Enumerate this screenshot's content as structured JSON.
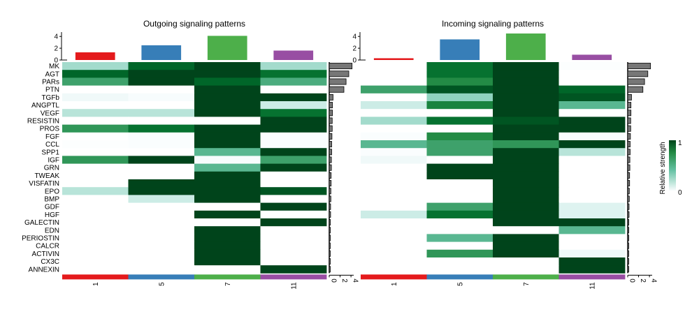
{
  "chart_data": {
    "type": "heatmap",
    "groups": [
      "1",
      "5",
      "7",
      "11"
    ],
    "group_colors": [
      "#e41a1c",
      "#377eb8",
      "#4daf4a",
      "#984ea3"
    ],
    "pathways": [
      "MK",
      "AGT",
      "PARs",
      "PTN",
      "TGFb",
      "ANGPTL",
      "VEGF",
      "RESISTIN",
      "PROS",
      "FGF",
      "CCL",
      "SPP1",
      "IGF",
      "GRN",
      "TWEAK",
      "VISFATIN",
      "EPO",
      "BMP",
      "GDF",
      "HGF",
      "GALECTIN",
      "EDN",
      "PERIOSTIN",
      "CALCR",
      "ACTIVIN",
      "CX3C",
      "ANNEXIN"
    ],
    "legend": {
      "title": "Relative strength",
      "min_label": "0",
      "max_label": "1",
      "low_color": "#f7fcfd",
      "high_color": "#00441b"
    },
    "panels": [
      {
        "title": "Outgoing signaling patterns",
        "top_bars": [
          1.3,
          2.5,
          4.1,
          1.6
        ],
        "top_ticks": [
          "4",
          "2",
          "0"
        ],
        "side_ticks": [
          "0",
          "2",
          "4"
        ],
        "side_bars": [
          4.2,
          3.6,
          3.1,
          2.7,
          0.7,
          0.6,
          0.6,
          0.55,
          0.55,
          0.5,
          0.45,
          0.45,
          0.4,
          0.4,
          0.35,
          0.35,
          0.3,
          0.3,
          0.25,
          0.25,
          0.2,
          0.2,
          0.2,
          0.15,
          0.15,
          0.15,
          0.15
        ],
        "values": [
          [
            0.3,
            0.9,
            1.0,
            0.3
          ],
          [
            0.9,
            1.0,
            1.0,
            0.85
          ],
          [
            0.6,
            1.0,
            0.9,
            0.55
          ],
          [
            0,
            0,
            1.0,
            0
          ],
          [
            0.1,
            0.08,
            1.0,
            1.0
          ],
          [
            0,
            0,
            1.0,
            0.2
          ],
          [
            0.25,
            0.25,
            1.0,
            0.85
          ],
          [
            0,
            0,
            0,
            1.0
          ],
          [
            0.65,
            0.85,
            1.0,
            1.0
          ],
          [
            0,
            0.05,
            1.0,
            0.05
          ],
          [
            0.03,
            0.05,
            1.0,
            0.05
          ],
          [
            0,
            0,
            0.5,
            1.0
          ],
          [
            0.65,
            1.0,
            0.08,
            0.6
          ],
          [
            0,
            0,
            0.5,
            1.0
          ],
          [
            0,
            0,
            1.0,
            0
          ],
          [
            0,
            1.0,
            1.0,
            0
          ],
          [
            0.25,
            1.0,
            1.0,
            0.95
          ],
          [
            0,
            0.2,
            1.0,
            0
          ],
          [
            0,
            0,
            0,
            1.0
          ],
          [
            0,
            0,
            1.0,
            0
          ],
          [
            0,
            0,
            0,
            1.0
          ],
          [
            0,
            0,
            1.0,
            0
          ],
          [
            0,
            0,
            1.0,
            0
          ],
          [
            0,
            0,
            1.0,
            0
          ],
          [
            0,
            0,
            1.0,
            0
          ],
          [
            0,
            0,
            1.0,
            0
          ],
          [
            0,
            0,
            0,
            1.0
          ]
        ]
      },
      {
        "title": "Incoming signaling patterns",
        "top_bars": [
          0.3,
          3.5,
          4.5,
          0.9
        ],
        "top_ticks": [
          "4",
          "2",
          "0"
        ],
        "side_ticks": [
          "0",
          "2",
          "4"
        ],
        "side_bars": [
          4.2,
          3.7,
          3.1,
          2.8,
          0.7,
          0.6,
          0.6,
          0.55,
          0.55,
          0.5,
          0.45,
          0.45,
          0.4,
          0.4,
          0.35,
          0.35,
          0.3,
          0.3,
          0.25,
          0.25,
          0.2,
          0.2,
          0.2,
          0.15,
          0.15,
          0.15,
          0.15
        ],
        "values": [
          [
            0,
            0.85,
            1.0,
            0.03
          ],
          [
            0,
            0.85,
            1.0,
            0
          ],
          [
            0,
            0.7,
            1.0,
            0
          ],
          [
            0.6,
            0.95,
            1.0,
            0.9
          ],
          [
            0,
            0.35,
            1.0,
            0.95
          ],
          [
            0.2,
            0.75,
            1.0,
            0.5
          ],
          [
            0,
            0,
            1.0,
            0
          ],
          [
            0.3,
            0.85,
            0.95,
            1.0
          ],
          [
            0,
            0,
            1.0,
            1.0
          ],
          [
            0.05,
            0.7,
            1.0,
            0.05
          ],
          [
            0.5,
            0.6,
            0.65,
            1.0
          ],
          [
            0.05,
            0.6,
            1.0,
            0.25
          ],
          [
            0.1,
            0,
            1.0,
            0
          ],
          [
            0,
            1.0,
            1.0,
            0
          ],
          [
            0,
            1.0,
            1.0,
            0
          ],
          [
            0,
            0,
            1.0,
            0
          ],
          [
            0,
            0,
            1.0,
            0
          ],
          [
            0,
            0,
            1.0,
            0
          ],
          [
            0,
            0.6,
            1.0,
            0.15
          ],
          [
            0.2,
            0.85,
            1.0,
            0.15
          ],
          [
            0,
            0,
            1.0,
            1.0
          ],
          [
            0,
            0,
            0,
            0.5
          ],
          [
            0,
            0.5,
            1.0,
            0
          ],
          [
            0,
            0,
            1.0,
            0
          ],
          [
            0,
            0.65,
            1.0,
            0.1
          ],
          [
            0,
            0,
            0,
            1.0
          ],
          [
            0,
            0,
            0,
            1.0
          ]
        ]
      }
    ]
  }
}
